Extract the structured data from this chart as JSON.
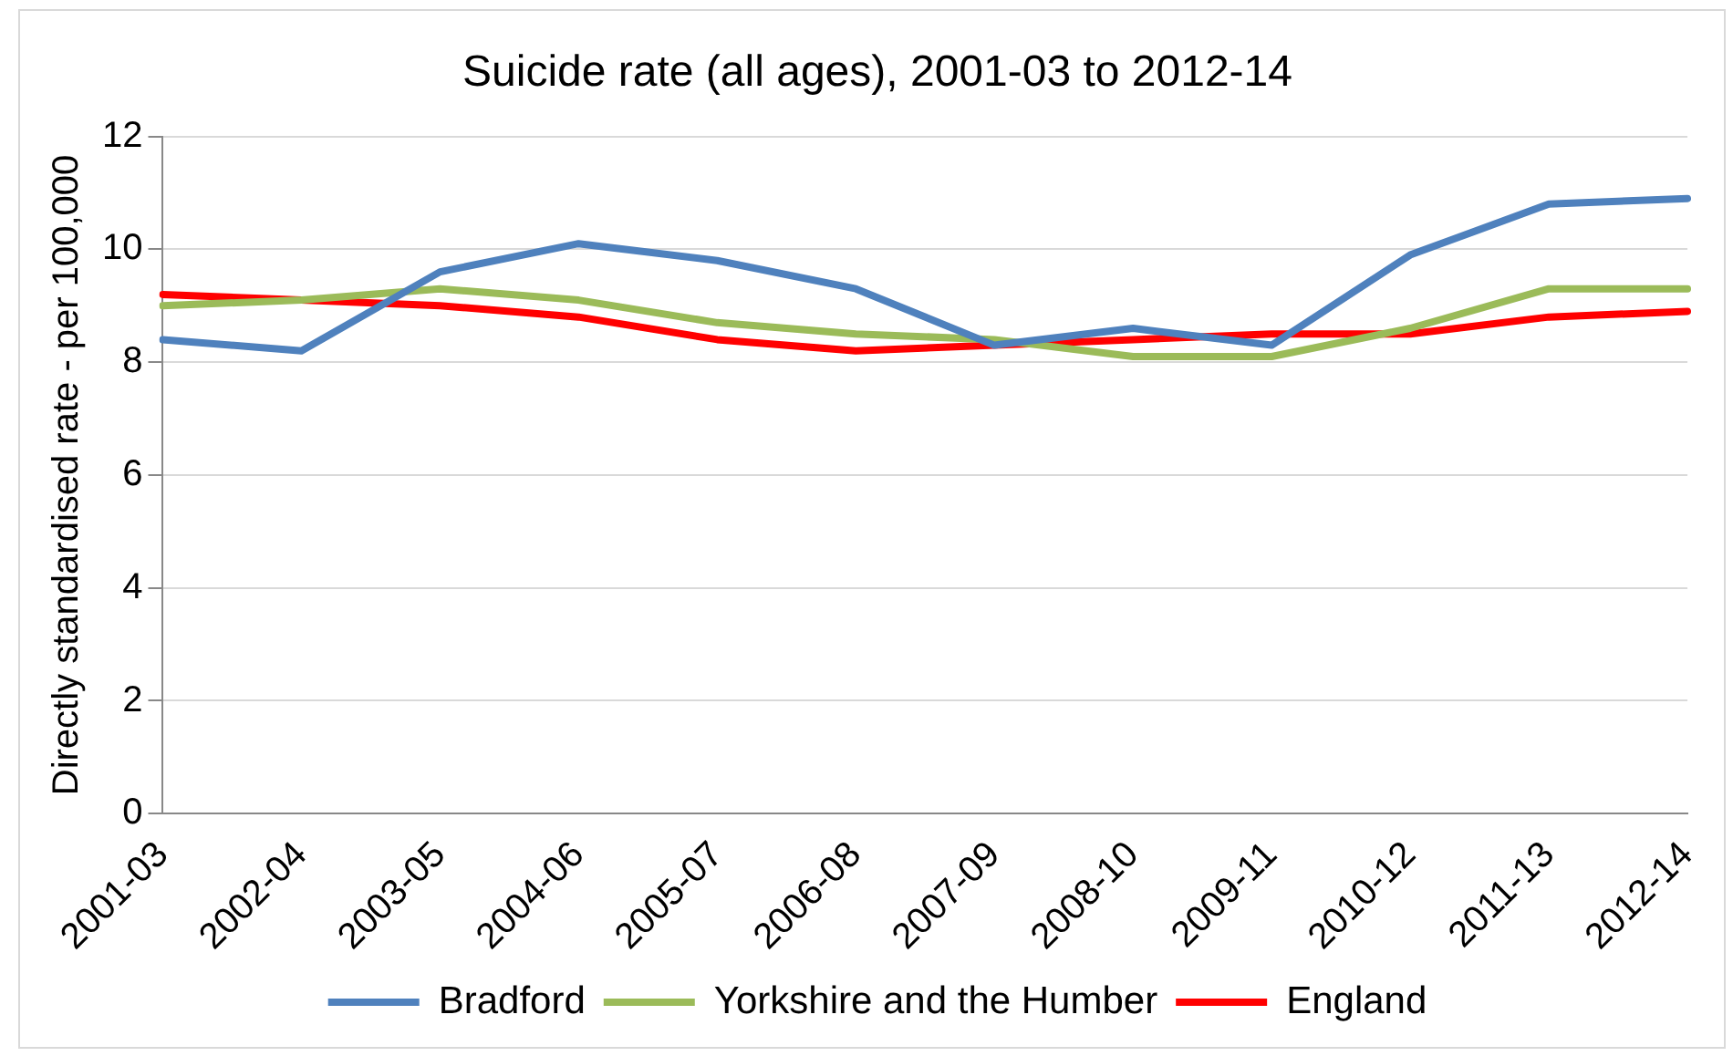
{
  "chart_data": {
    "type": "line",
    "title": "Suicide rate (all ages), 2001-03 to 2012-14",
    "ylabel": "Directly standardised rate - per 100,000",
    "categories": [
      "2001-03",
      "2002-04",
      "2003-05",
      "2004-06",
      "2005-07",
      "2006-08",
      "2007-09",
      "2008-10",
      "2009-11",
      "2010-12",
      "2011-13",
      "2012-14"
    ],
    "series": [
      {
        "name": "Bradford",
        "color": "#4f81bd",
        "values": [
          8.4,
          8.2,
          9.6,
          10.1,
          9.8,
          9.3,
          8.3,
          8.6,
          8.3,
          9.9,
          10.8,
          10.9
        ]
      },
      {
        "name": "Yorkshire and the Humber",
        "color": "#9bbb59",
        "values": [
          9.0,
          9.1,
          9.3,
          9.1,
          8.7,
          8.5,
          8.4,
          8.1,
          8.1,
          8.6,
          9.3,
          9.3
        ]
      },
      {
        "name": "England",
        "color": "#ff0000",
        "values": [
          9.2,
          9.1,
          9.0,
          8.8,
          8.4,
          8.2,
          8.3,
          8.4,
          8.5,
          8.5,
          8.8,
          8.9
        ]
      }
    ],
    "ylim": [
      0,
      12
    ],
    "yticks": [
      0,
      2,
      4,
      6,
      8,
      10,
      12
    ],
    "grid": "y",
    "legend": "bottom",
    "marker": "none",
    "line_style": "solid"
  }
}
